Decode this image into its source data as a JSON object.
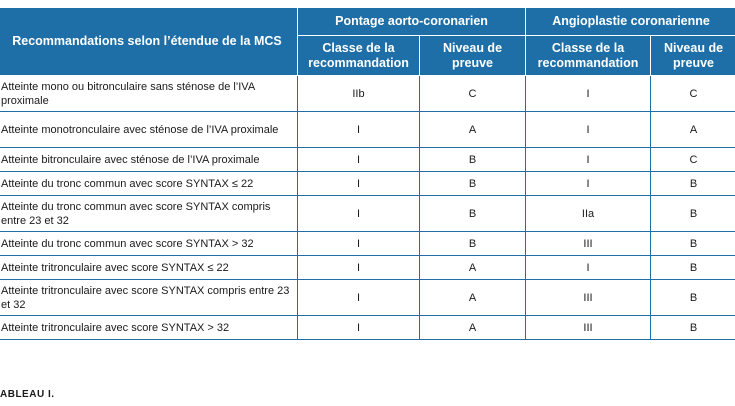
{
  "table": {
    "header": {
      "row_label": "Recommandations selon l’étendue de la MCS",
      "group_cabg": "Pontage aorto-coronarien",
      "group_pci": "Angioplastie coronarienne",
      "col_class": "Classe de la recommandation",
      "col_level": "Niveau de preuve"
    },
    "rows": [
      {
        "label": "Atteinte mono ou bitronculaire sans sténose de l’IVA proximale",
        "cabg_class": "IIb",
        "cabg_level": "C",
        "pci_class": "I",
        "pci_level": "C"
      },
      {
        "label": "Atteinte monotronculaire avec sténose de l’IVA proximale",
        "cabg_class": "I",
        "cabg_level": "A",
        "pci_class": "I",
        "pci_level": "A"
      },
      {
        "label": "Atteinte bitronculaire avec sténose de l’IVA proximale",
        "cabg_class": "I",
        "cabg_level": "B",
        "pci_class": "I",
        "pci_level": "C"
      },
      {
        "label": "Atteinte du tronc commun avec score SYNTAX ≤ 22",
        "cabg_class": "I",
        "cabg_level": "B",
        "pci_class": "I",
        "pci_level": "B"
      },
      {
        "label": "Atteinte du tronc commun avec score SYNTAX compris entre 23 et 32",
        "cabg_class": "I",
        "cabg_level": "B",
        "pci_class": "IIa",
        "pci_level": "B"
      },
      {
        "label": "Atteinte du tronc commun avec score SYNTAX > 32",
        "cabg_class": "I",
        "cabg_level": "B",
        "pci_class": "III",
        "pci_level": "B"
      },
      {
        "label": "Atteinte tritronculaire avec score SYNTAX ≤ 22",
        "cabg_class": "I",
        "cabg_level": "A",
        "pci_class": "I",
        "pci_level": "B"
      },
      {
        "label": "Atteinte tritronculaire avec score SYNTAX compris entre 23 et 32",
        "cabg_class": "I",
        "cabg_level": "A",
        "pci_class": "III",
        "pci_level": "B"
      },
      {
        "label": "Atteinte tritronculaire avec score SYNTAX > 32",
        "cabg_class": "I",
        "cabg_level": "A",
        "pci_class": "III",
        "pci_level": "B"
      }
    ]
  },
  "caption": "ABLEAU I.",
  "colors": {
    "header_bg": "#1e6fa8",
    "header_text": "#ffffff",
    "border": "#1e6fa8"
  }
}
